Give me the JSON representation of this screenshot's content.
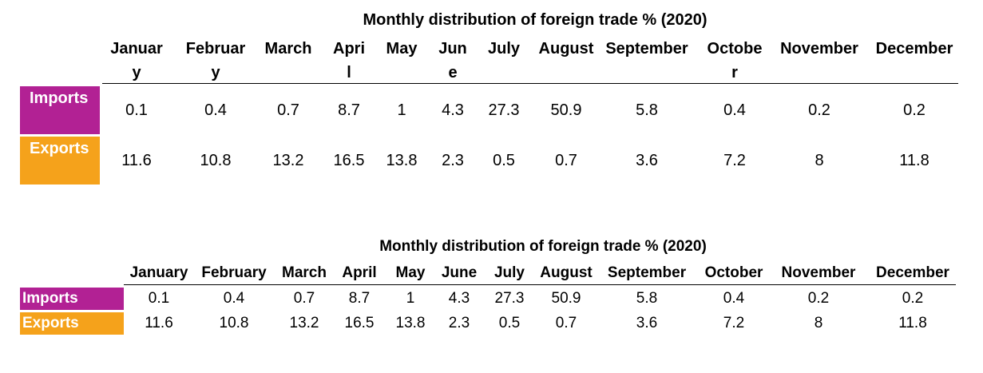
{
  "chart_data": [
    {
      "type": "table",
      "title": "Monthly distribution of foreign trade % (2020)",
      "categories": [
        "January",
        "February",
        "March",
        "April",
        "May",
        "June",
        "July",
        "August",
        "September",
        "October",
        "November",
        "December"
      ],
      "series": [
        {
          "name": "Imports",
          "values": [
            0.1,
            0.4,
            0.7,
            8.7,
            1,
            4.3,
            27.3,
            50.9,
            5.8,
            0.4,
            0.2,
            0.2
          ]
        },
        {
          "name": "Exports",
          "values": [
            11.6,
            10.8,
            13.2,
            16.5,
            13.8,
            2.3,
            0.5,
            0.7,
            3.6,
            7.2,
            8,
            11.8
          ]
        }
      ]
    },
    {
      "type": "table",
      "title": "Monthly distribution of foreign trade % (2020)",
      "categories": [
        "January",
        "February",
        "March",
        "April",
        "May",
        "June",
        "July",
        "August",
        "September",
        "October",
        "November",
        "December"
      ],
      "series": [
        {
          "name": "Imports",
          "values": [
            0.1,
            0.4,
            0.7,
            8.7,
            1,
            4.3,
            27.3,
            50.9,
            5.8,
            0.4,
            0.2,
            0.2
          ]
        },
        {
          "name": "Exports",
          "values": [
            11.6,
            10.8,
            13.2,
            16.5,
            13.8,
            2.3,
            0.5,
            0.7,
            3.6,
            7.2,
            8,
            11.8
          ]
        }
      ]
    }
  ],
  "colors": {
    "imports": "#b22194",
    "exports": "#f5a21b"
  }
}
